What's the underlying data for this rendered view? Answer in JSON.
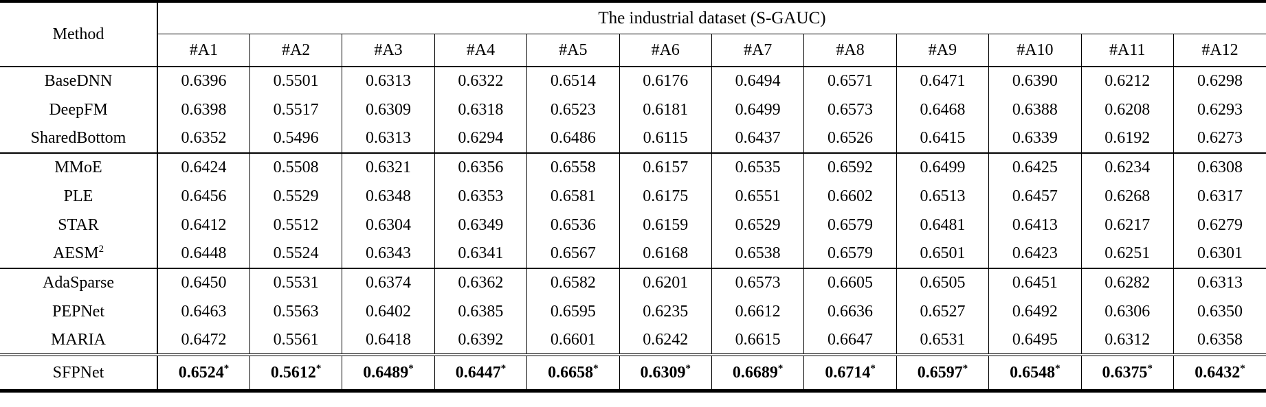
{
  "table": {
    "title": "The industrial dataset (S-GAUC)",
    "method_header": "Method",
    "columns": [
      "#A1",
      "#A2",
      "#A3",
      "#A4",
      "#A5",
      "#A6",
      "#A7",
      "#A8",
      "#A9",
      "#A10",
      "#A11",
      "#A12"
    ],
    "groups": [
      {
        "rows": [
          {
            "method": "BaseDNN",
            "method_sup": "",
            "bold": false,
            "value_sup": "",
            "values": [
              "0.6396",
              "0.5501",
              "0.6313",
              "0.6322",
              "0.6514",
              "0.6176",
              "0.6494",
              "0.6571",
              "0.6471",
              "0.6390",
              "0.6212",
              "0.6298"
            ]
          },
          {
            "method": "DeepFM",
            "method_sup": "",
            "bold": false,
            "value_sup": "",
            "values": [
              "0.6398",
              "0.5517",
              "0.6309",
              "0.6318",
              "0.6523",
              "0.6181",
              "0.6499",
              "0.6573",
              "0.6468",
              "0.6388",
              "0.6208",
              "0.6293"
            ]
          },
          {
            "method": "SharedBottom",
            "method_sup": "",
            "bold": false,
            "value_sup": "",
            "values": [
              "0.6352",
              "0.5496",
              "0.6313",
              "0.6294",
              "0.6486",
              "0.6115",
              "0.6437",
              "0.6526",
              "0.6415",
              "0.6339",
              "0.6192",
              "0.6273"
            ]
          }
        ]
      },
      {
        "rows": [
          {
            "method": "MMoE",
            "method_sup": "",
            "bold": false,
            "value_sup": "",
            "values": [
              "0.6424",
              "0.5508",
              "0.6321",
              "0.6356",
              "0.6558",
              "0.6157",
              "0.6535",
              "0.6592",
              "0.6499",
              "0.6425",
              "0.6234",
              "0.6308"
            ]
          },
          {
            "method": "PLE",
            "method_sup": "",
            "bold": false,
            "value_sup": "",
            "values": [
              "0.6456",
              "0.5529",
              "0.6348",
              "0.6353",
              "0.6581",
              "0.6175",
              "0.6551",
              "0.6602",
              "0.6513",
              "0.6457",
              "0.6268",
              "0.6317"
            ]
          },
          {
            "method": "STAR",
            "method_sup": "",
            "bold": false,
            "value_sup": "",
            "values": [
              "0.6412",
              "0.5512",
              "0.6304",
              "0.6349",
              "0.6536",
              "0.6159",
              "0.6529",
              "0.6579",
              "0.6481",
              "0.6413",
              "0.6217",
              "0.6279"
            ]
          },
          {
            "method": "AESM",
            "method_sup": "2",
            "bold": false,
            "value_sup": "",
            "values": [
              "0.6448",
              "0.5524",
              "0.6343",
              "0.6341",
              "0.6567",
              "0.6168",
              "0.6538",
              "0.6579",
              "0.6501",
              "0.6423",
              "0.6251",
              "0.6301"
            ]
          }
        ]
      },
      {
        "rows": [
          {
            "method": "AdaSparse",
            "method_sup": "",
            "bold": false,
            "value_sup": "",
            "values": [
              "0.6450",
              "0.5531",
              "0.6374",
              "0.6362",
              "0.6582",
              "0.6201",
              "0.6573",
              "0.6605",
              "0.6505",
              "0.6451",
              "0.6282",
              "0.6313"
            ]
          },
          {
            "method": "PEPNet",
            "method_sup": "",
            "bold": false,
            "value_sup": "",
            "values": [
              "0.6463",
              "0.5563",
              "0.6402",
              "0.6385",
              "0.6595",
              "0.6235",
              "0.6612",
              "0.6636",
              "0.6527",
              "0.6492",
              "0.6306",
              "0.6350"
            ]
          },
          {
            "method": "MARIA",
            "method_sup": "",
            "bold": false,
            "value_sup": "",
            "values": [
              "0.6472",
              "0.5561",
              "0.6418",
              "0.6392",
              "0.6601",
              "0.6242",
              "0.6615",
              "0.6647",
              "0.6531",
              "0.6495",
              "0.6312",
              "0.6358"
            ]
          }
        ]
      },
      {
        "rows": [
          {
            "method": "SFPNet",
            "method_sup": "",
            "bold": true,
            "value_sup": "*",
            "values": [
              "0.6524",
              "0.5612",
              "0.6489",
              "0.6447",
              "0.6658",
              "0.6309",
              "0.6689",
              "0.6714",
              "0.6597",
              "0.6548",
              "0.6375",
              "0.6432"
            ]
          }
        ]
      }
    ]
  }
}
